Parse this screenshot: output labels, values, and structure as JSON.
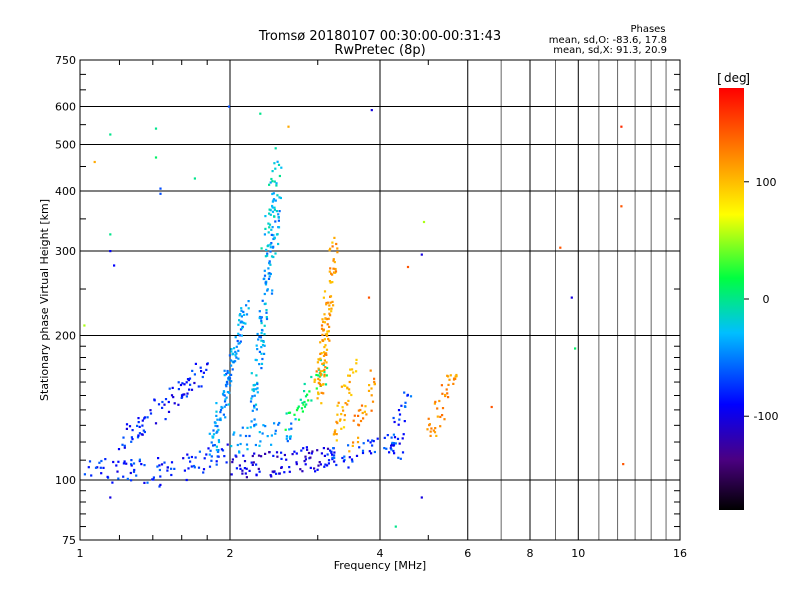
{
  "header": {
    "title_line1": "Tromsø 20180107 00:30:00-00:31:43",
    "title_line2": "RwPretec (8p)",
    "stats_title": "Phases",
    "stats_o": "mean, sd,O: -83.6, 17.8",
    "stats_x": "mean, sd,X:  91.3, 20.9"
  },
  "colorbar": {
    "unit": "deg",
    "min": -180,
    "max": 180,
    "ticks": [
      {
        "value": 100,
        "label": "100"
      },
      {
        "value": 0,
        "label": "0"
      },
      {
        "value": -100,
        "label": "-100"
      }
    ]
  },
  "chart_data": {
    "type": "scatter",
    "xlabel": "Frequency [MHz]",
    "ylabel": "Stationary phase Virtual Height [km]",
    "xscale": "log",
    "yscale": "log",
    "xlim": [
      1,
      16
    ],
    "ylim": [
      75,
      750
    ],
    "grid": true,
    "xticks": [
      {
        "value": 1,
        "label": "1"
      },
      {
        "value": 2,
        "label": "2"
      },
      {
        "value": 4,
        "label": "4"
      },
      {
        "value": 6,
        "label": "6"
      },
      {
        "value": 8,
        "label": "8"
      },
      {
        "value": 10,
        "label": "10"
      },
      {
        "value": 16,
        "label": "16"
      }
    ],
    "yticks": [
      {
        "value": 75,
        "label": "75"
      },
      {
        "value": 100,
        "label": "100"
      },
      {
        "value": 200,
        "label": "200"
      },
      {
        "value": 300,
        "label": "300"
      },
      {
        "value": 400,
        "label": "400"
      },
      {
        "value": 500,
        "label": "500"
      },
      {
        "value": 600,
        "label": "600"
      },
      {
        "value": 750,
        "label": "750"
      }
    ],
    "traces": [
      {
        "x0": 1.0,
        "x1": 1.45,
        "h0": 103,
        "h1": 108,
        "phase": -90,
        "count": 40
      },
      {
        "x0": 1.2,
        "x1": 1.8,
        "h0": 118,
        "h1": 172,
        "phase": -95,
        "count": 80
      },
      {
        "x0": 1.35,
        "x1": 1.95,
        "h0": 100,
        "h1": 113,
        "phase": -90,
        "count": 50
      },
      {
        "x0": 1.85,
        "x1": 2.15,
        "h0": 118,
        "h1": 230,
        "phase": -60,
        "count": 120
      },
      {
        "x0": 2.2,
        "x1": 2.5,
        "h0": 130,
        "h1": 380,
        "phase": -55,
        "count": 130
      },
      {
        "x0": 2.35,
        "x1": 2.5,
        "h0": 300,
        "h1": 480,
        "phase": -40,
        "count": 40
      },
      {
        "x0": 2.0,
        "x1": 2.7,
        "h0": 120,
        "h1": 130,
        "phase": -60,
        "count": 40
      },
      {
        "x0": 2.0,
        "x1": 3.2,
        "h0": 106,
        "h1": 112,
        "phase": -110,
        "count": 90
      },
      {
        "x0": 3.1,
        "x1": 4.5,
        "h0": 110,
        "h1": 118,
        "phase": -90,
        "count": 60
      },
      {
        "x0": 2.6,
        "x1": 3.1,
        "h0": 130,
        "h1": 170,
        "phase": -10,
        "count": 40
      },
      {
        "x0": 3.0,
        "x1": 3.25,
        "h0": 150,
        "h1": 310,
        "phase": 105,
        "count": 110
      },
      {
        "x0": 3.25,
        "x1": 3.55,
        "h0": 122,
        "h1": 178,
        "phase": 95,
        "count": 40
      },
      {
        "x0": 3.5,
        "x1": 3.9,
        "h0": 120,
        "h1": 160,
        "phase": 110,
        "count": 30
      },
      {
        "x0": 4.2,
        "x1": 4.6,
        "h0": 122,
        "h1": 150,
        "phase": -85,
        "count": 20
      },
      {
        "x0": 5.0,
        "x1": 5.7,
        "h0": 125,
        "h1": 168,
        "phase": 110,
        "count": 40
      }
    ],
    "points": [
      {
        "x": 1.15,
        "y": 525,
        "phase": -20
      },
      {
        "x": 1.42,
        "y": 540,
        "phase": -20
      },
      {
        "x": 1.42,
        "y": 470,
        "phase": -10
      },
      {
        "x": 1.45,
        "y": 405,
        "phase": -80
      },
      {
        "x": 1.45,
        "y": 395,
        "phase": -80
      },
      {
        "x": 1.15,
        "y": 325,
        "phase": -20
      },
      {
        "x": 1.15,
        "y": 300,
        "phase": -100
      },
      {
        "x": 1.17,
        "y": 280,
        "phase": -100
      },
      {
        "x": 1.07,
        "y": 460,
        "phase": 100
      },
      {
        "x": 1.02,
        "y": 210,
        "phase": 40
      },
      {
        "x": 1.15,
        "y": 92,
        "phase": -110
      },
      {
        "x": 1.7,
        "y": 425,
        "phase": -20
      },
      {
        "x": 1.99,
        "y": 600,
        "phase": -80
      },
      {
        "x": 2.3,
        "y": 580,
        "phase": -20
      },
      {
        "x": 2.62,
        "y": 545,
        "phase": 100
      },
      {
        "x": 3.85,
        "y": 590,
        "phase": -110
      },
      {
        "x": 4.9,
        "y": 345,
        "phase": 40
      },
      {
        "x": 4.85,
        "y": 295,
        "phase": -110
      },
      {
        "x": 4.55,
        "y": 278,
        "phase": 140
      },
      {
        "x": 3.8,
        "y": 240,
        "phase": 140
      },
      {
        "x": 4.3,
        "y": 80,
        "phase": -20
      },
      {
        "x": 4.85,
        "y": 92,
        "phase": -110
      },
      {
        "x": 6.7,
        "y": 142,
        "phase": 140
      },
      {
        "x": 9.2,
        "y": 305,
        "phase": 140
      },
      {
        "x": 9.7,
        "y": 240,
        "phase": -110
      },
      {
        "x": 9.85,
        "y": 188,
        "phase": -10
      },
      {
        "x": 12.2,
        "y": 545,
        "phase": 160
      },
      {
        "x": 12.2,
        "y": 372,
        "phase": 140
      },
      {
        "x": 12.3,
        "y": 108,
        "phase": 140
      }
    ]
  }
}
